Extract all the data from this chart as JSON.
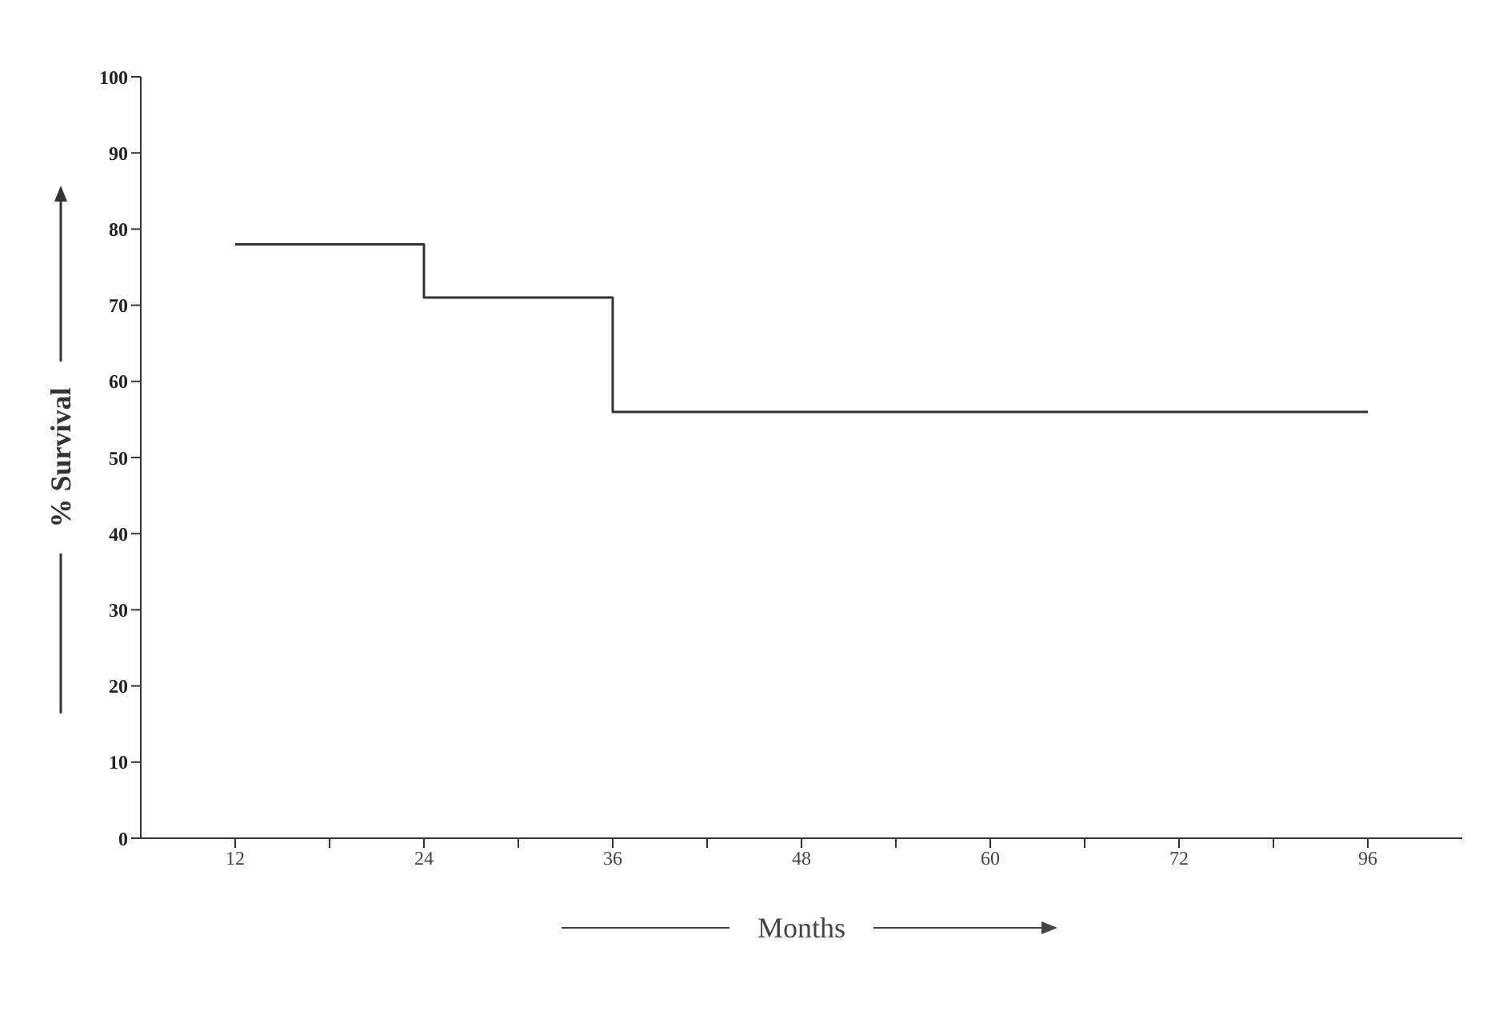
{
  "chart_data": {
    "type": "step",
    "xlabel": "Months",
    "ylabel": "% Survival",
    "categories": [
      "12",
      null,
      "24",
      null,
      "36",
      null,
      "48",
      null,
      "60",
      null,
      "72",
      null,
      "96"
    ],
    "series": [
      {
        "color": "#333333",
        "values": [
          78,
          78,
          71,
          71,
          56,
          56,
          56,
          56,
          56,
          56,
          56,
          56,
          56
        ]
      }
    ],
    "ylim": [
      0,
      100
    ],
    "yticks": [
      0,
      10,
      20,
      30,
      40,
      50,
      60,
      70,
      80,
      90,
      100
    ],
    "grid": false,
    "legend": false,
    "marker": "none",
    "line_style": "solid"
  }
}
